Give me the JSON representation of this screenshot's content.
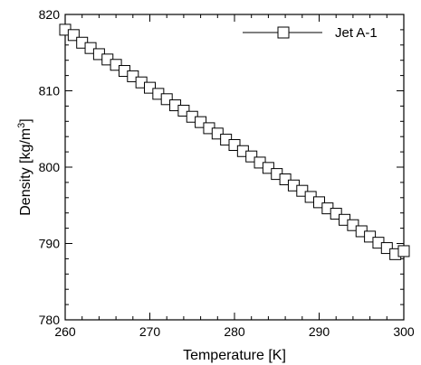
{
  "chart_data": {
    "type": "line",
    "title": "",
    "xlabel": "Temperature [K]",
    "ylabel_main": "Density [kg/m",
    "ylabel_sup": "3",
    "ylabel_tail": "]",
    "xlim": [
      260,
      300
    ],
    "ylim": [
      780,
      820
    ],
    "xticks": [
      260,
      270,
      280,
      290,
      300
    ],
    "yticks": [
      780,
      790,
      800,
      810,
      820
    ],
    "xtick_labels": [
      "260",
      "270",
      "280",
      "290",
      "300"
    ],
    "ytick_labels": [
      "780",
      "790",
      "800",
      "810",
      "820"
    ],
    "grid": false,
    "legend": {
      "position": "top-right",
      "entries": [
        "Jet A-1"
      ]
    },
    "series": [
      {
        "name": "Jet A-1",
        "marker": "open-square",
        "color": "#000000",
        "x": [
          260,
          261,
          262,
          263,
          264,
          265,
          266,
          267,
          268,
          269,
          270,
          271,
          272,
          273,
          274,
          275,
          276,
          277,
          278,
          279,
          280,
          281,
          282,
          283,
          284,
          285,
          286,
          287,
          288,
          289,
          290,
          291,
          292,
          293,
          294,
          295,
          296,
          297,
          298,
          299,
          300
        ],
        "y": [
          818.0,
          817.3,
          816.3,
          815.6,
          814.8,
          814.1,
          813.4,
          812.6,
          811.9,
          811.1,
          810.4,
          809.6,
          808.9,
          808.1,
          807.4,
          806.6,
          805.9,
          805.1,
          804.4,
          803.6,
          802.9,
          802.1,
          801.4,
          800.6,
          799.9,
          799.1,
          798.4,
          797.6,
          796.9,
          796.1,
          795.4,
          794.6,
          793.9,
          793.1,
          792.4,
          791.6,
          790.9,
          790.1,
          789.4,
          788.6,
          789.0
        ]
      }
    ]
  }
}
